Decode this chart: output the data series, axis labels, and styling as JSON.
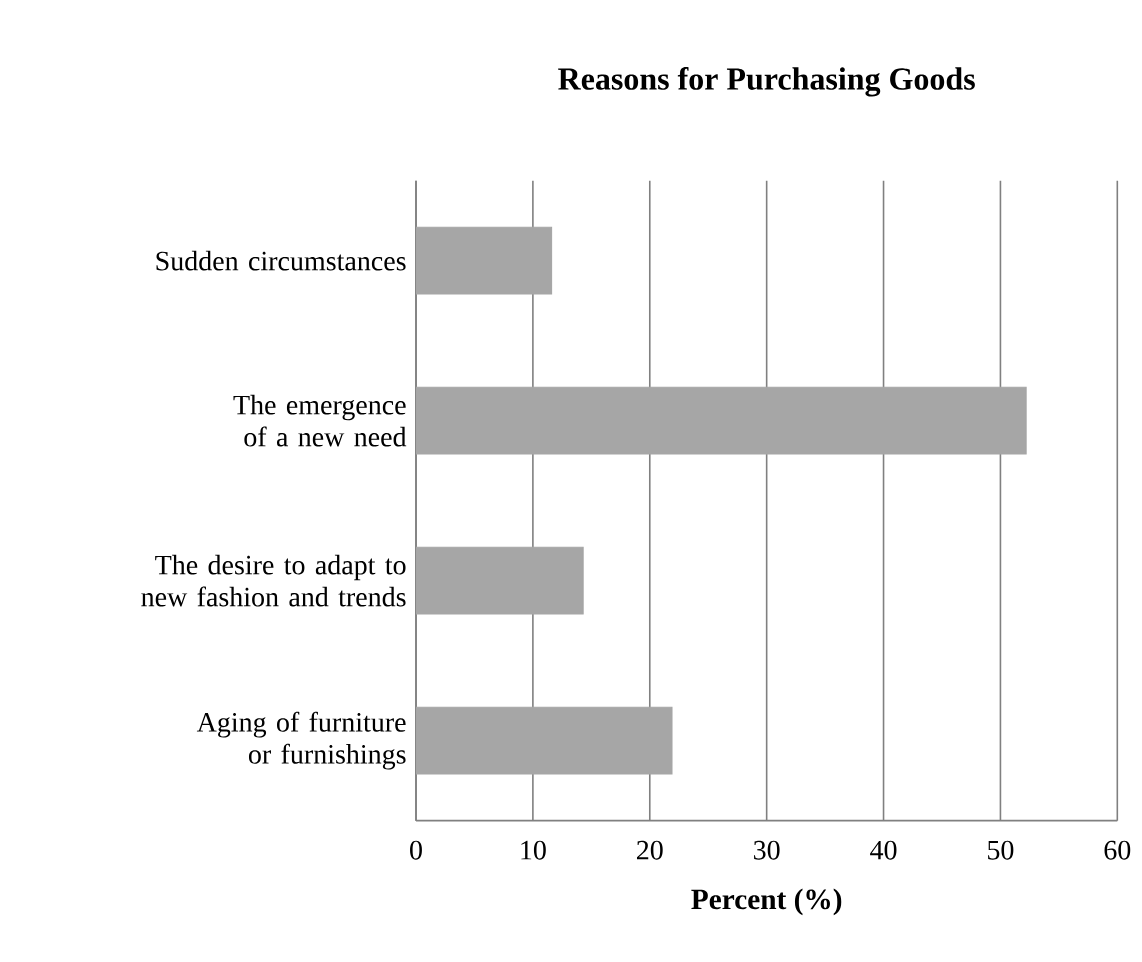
{
  "chart_data": {
    "type": "bar",
    "orientation": "horizontal",
    "title": "Reasons for Purchasing  Goods",
    "xlabel": "Percent (%)",
    "categories": [
      "Sudden circumstances",
      "The emergence of a new need",
      "The desire to adapt to new fashion and trends",
      "Aging of furniture or furnishings"
    ],
    "values": [
      11.6,
      52.2,
      14.3,
      21.9
    ],
    "color": "#a6a6a6",
    "xlim": [
      0,
      60
    ],
    "xticks": [
      0,
      10,
      20,
      30,
      40,
      50,
      60
    ],
    "grid": "x"
  }
}
